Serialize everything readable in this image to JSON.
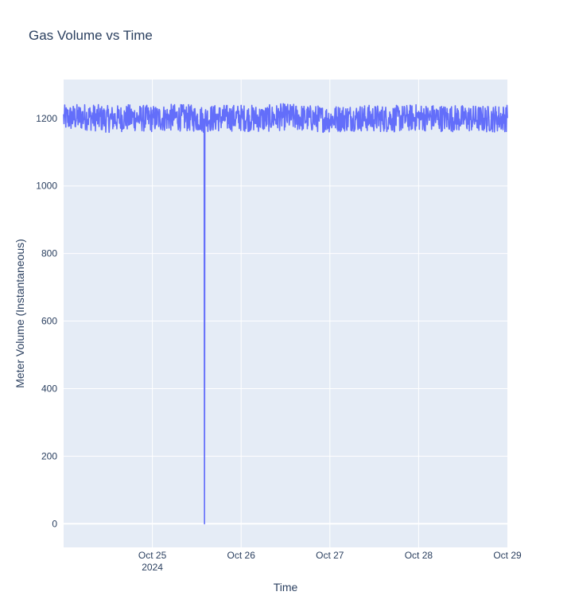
{
  "chart_data": {
    "type": "line",
    "title": "Gas Volume vs Time",
    "xlabel": "Time",
    "ylabel": "Meter Volume (Instantaneous)",
    "xlim": [
      "2024-10-24 00:00",
      "2024-10-29 00:00"
    ],
    "ylim": [
      -70,
      1315
    ],
    "x_ticks": [
      {
        "value": "2024-10-25",
        "label": "Oct 25",
        "sublabel": "2024"
      },
      {
        "value": "2024-10-26",
        "label": "Oct 26",
        "sublabel": ""
      },
      {
        "value": "2024-10-27",
        "label": "Oct 27",
        "sublabel": ""
      },
      {
        "value": "2024-10-28",
        "label": "Oct 28",
        "sublabel": ""
      },
      {
        "value": "2024-10-29",
        "label": "Oct 29",
        "sublabel": ""
      }
    ],
    "y_ticks": [
      0,
      200,
      400,
      600,
      800,
      1000,
      1200
    ],
    "grid": true,
    "legend": "none",
    "colors": {
      "line": "#636efa",
      "plot_bg": "#e5ecf6",
      "grid": "#ffffff",
      "text": "#2a3f5f"
    },
    "series": [
      {
        "values_summary": "approximately 1200 with noise amplitude about +/-40 throughout",
        "x": [
          "2024-10-24 00:00",
          "2024-10-24 06:00",
          "2024-10-24 12:00",
          "2024-10-24 18:00",
          "2024-10-25 00:00",
          "2024-10-25 06:00",
          "2024-10-25 12:00",
          "2024-10-25 14:00",
          "2024-10-25 14:06",
          "2024-10-25 14:12",
          "2024-10-25 18:00",
          "2024-10-26 00:00",
          "2024-10-26 06:00",
          "2024-10-26 12:00",
          "2024-10-26 18:00",
          "2024-10-27 00:00",
          "2024-10-27 06:00",
          "2024-10-27 12:00",
          "2024-10-27 18:00",
          "2024-10-28 00:00",
          "2024-10-28 06:00",
          "2024-10-28 12:00",
          "2024-10-28 18:00",
          "2024-10-29 00:00"
        ],
        "y": [
          1200,
          1205,
          1198,
          1202,
          1199,
          1203,
          1200,
          1198,
          0,
          1200,
          1201,
          1202,
          1199,
          1205,
          1200,
          1198,
          1202,
          1200,
          1199,
          1203,
          1201,
          1200,
          1198,
          1201
        ],
        "noise_amplitude": 40
      }
    ]
  }
}
